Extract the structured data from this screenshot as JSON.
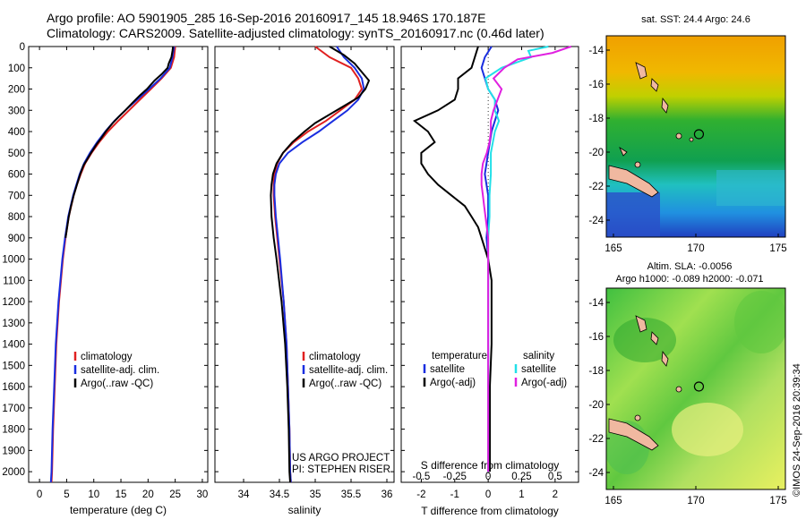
{
  "header": {
    "line1": "Argo profile: AO 5901905_285 16-Sep-2016 20160917_145 18.946S 170.187E",
    "line2": "Climatology: CARS2009. Satellite-adjusted climatology: synTS_20160917.nc (0.46d later)"
  },
  "colors": {
    "climatology": "#e02020",
    "satellite": "#1a2ee0",
    "argo": "#000000",
    "satellite_s": "#22e0e8",
    "argo_s": "#e020e0"
  },
  "chart_data": [
    {
      "type": "line",
      "xlabel": "temperature (deg C)",
      "ylabel": "",
      "xlim": [
        -2,
        31
      ],
      "ylim": [
        2050,
        0
      ],
      "xticks": [
        0,
        5,
        10,
        15,
        20,
        25,
        30
      ],
      "yticks": [
        0,
        100,
        200,
        300,
        400,
        500,
        600,
        700,
        800,
        900,
        1000,
        1100,
        1200,
        1300,
        1400,
        1500,
        1600,
        1700,
        1800,
        1900,
        2000
      ],
      "legend": [
        "climatology",
        "satellite-adj. clim.",
        "Argo(..raw -QC)"
      ],
      "legend_position": "lower-left",
      "series": [
        {
          "key": "clim",
          "depth": [
            0,
            50,
            100,
            150,
            200,
            250,
            300,
            350,
            400,
            450,
            500,
            550,
            600,
            650,
            700,
            800,
            900,
            1000,
            1200,
            1400,
            1600,
            1800,
            2000,
            2050
          ],
          "values": [
            25,
            24.8,
            24.2,
            22.5,
            20.5,
            18.5,
            16.5,
            14.5,
            12.6,
            11,
            9.6,
            8.4,
            7.6,
            6.9,
            6.3,
            5.4,
            4.8,
            4.3,
            3.6,
            3.1,
            2.8,
            2.5,
            2.3,
            2.2
          ]
        },
        {
          "key": "sat",
          "depth": [
            0,
            50,
            100,
            150,
            200,
            250,
            300,
            350,
            400,
            450,
            500,
            550,
            600,
            650,
            700,
            800,
            900,
            1000,
            1200,
            1400,
            1600,
            1800,
            2000,
            2050
          ],
          "values": [
            24.8,
            24.5,
            24,
            22.3,
            20.2,
            18,
            15.8,
            13.8,
            12.1,
            10.6,
            9.3,
            8.2,
            7.4,
            6.8,
            6.2,
            5.3,
            4.7,
            4.2,
            3.5,
            3,
            2.7,
            2.4,
            2.2,
            2.1
          ]
        },
        {
          "key": "argo",
          "depth": [
            0,
            20,
            50,
            80,
            100,
            130,
            160,
            200,
            230,
            260,
            300,
            330,
            360,
            400,
            430,
            460,
            500,
            530,
            560,
            600,
            650,
            700,
            750,
            800,
            900
          ],
          "values": [
            24.6,
            24.5,
            24.3,
            23.8,
            23.6,
            22.5,
            21.2,
            19.8,
            18.5,
            17.3,
            15.8,
            14.6,
            13.5,
            12.2,
            11.4,
            10.5,
            9.5,
            8.8,
            8.1,
            7.5,
            6.9,
            6.3,
            5.8,
            5.4,
            4.8
          ]
        }
      ]
    },
    {
      "type": "line",
      "xlabel": "salinity",
      "ylabel": "",
      "xlim": [
        33.6,
        36.1
      ],
      "ylim": [
        2050,
        0
      ],
      "xticks": [
        34,
        34.5,
        35,
        35.5,
        36
      ],
      "legend": [
        "climatology",
        "satellite-adj. clim.",
        "Argo(..raw -QC)"
      ],
      "legend_position": "lower-right",
      "annotations": [
        "US ARGO PROJECT",
        "PI: STEPHEN RISER"
      ],
      "series": [
        {
          "key": "clim",
          "depth": [
            0,
            50,
            100,
            150,
            200,
            250,
            300,
            350,
            400,
            450,
            500,
            550,
            600,
            650,
            700,
            800,
            900,
            1000,
            1200,
            1400,
            1600,
            1800,
            2000,
            2050
          ],
          "values": [
            35,
            35.2,
            35.5,
            35.6,
            35.65,
            35.55,
            35.35,
            35.15,
            34.9,
            34.7,
            34.55,
            34.47,
            34.43,
            34.42,
            34.42,
            34.44,
            34.47,
            34.5,
            34.56,
            34.6,
            34.62,
            34.64,
            34.65,
            34.66
          ]
        },
        {
          "key": "sat",
          "depth": [
            0,
            50,
            100,
            150,
            200,
            250,
            300,
            350,
            400,
            450,
            500,
            550,
            600,
            650,
            700,
            800,
            900,
            1000,
            1200,
            1400,
            1600,
            1800,
            2000,
            2050
          ],
          "values": [
            35.3,
            35.4,
            35.55,
            35.65,
            35.68,
            35.6,
            35.45,
            35.25,
            35.05,
            34.82,
            34.62,
            34.5,
            34.45,
            34.43,
            34.43,
            34.45,
            34.48,
            34.51,
            34.56,
            34.6,
            34.62,
            34.64,
            34.65,
            34.66
          ]
        },
        {
          "key": "argo",
          "depth": [
            0,
            40,
            80,
            120,
            160,
            200,
            240,
            280,
            320,
            360,
            400,
            450,
            500,
            550,
            600,
            650,
            700,
            800,
            900,
            1000,
            1200,
            1400,
            1600,
            1800,
            2000,
            2050
          ],
          "values": [
            35.2,
            35.4,
            35.55,
            35.65,
            35.75,
            35.7,
            35.6,
            35.4,
            35.2,
            35,
            34.85,
            34.68,
            34.55,
            34.46,
            34.41,
            34.39,
            34.38,
            34.39,
            34.42,
            34.46,
            34.53,
            34.58,
            34.61,
            34.63,
            34.64,
            34.65
          ]
        }
      ]
    },
    {
      "type": "line",
      "xlabel": "T difference from climatology",
      "xlabel_top": "S difference from climatology",
      "xlim": [
        -2.6,
        2.7
      ],
      "ylim": [
        2050,
        0
      ],
      "xticks": [
        -2,
        -1,
        0,
        1,
        2
      ],
      "xticks_s": [
        "-0.5",
        "-0.25",
        "0",
        "0.25",
        "0.5"
      ],
      "legend_t_title": "temperature",
      "legend_s_title": "salinity",
      "legend": [
        "satellite",
        "Argo(-adj)",
        "satellite",
        "Argo(-adj)"
      ],
      "series": [
        {
          "key": "t_sat",
          "depth": [
            0,
            50,
            100,
            150,
            200,
            250,
            300,
            350,
            400,
            500,
            600,
            700,
            800,
            900,
            1000,
            1200,
            1400,
            1600,
            1800,
            2000
          ],
          "values": [
            0.1,
            -0.1,
            -0.2,
            -0.1,
            0,
            0.2,
            0.3,
            0.2,
            0.1,
            0,
            -0.1,
            0,
            0,
            -0.05,
            0,
            0,
            0,
            0,
            0,
            0
          ]
        },
        {
          "key": "t_argo",
          "depth": [
            0,
            50,
            100,
            150,
            200,
            250,
            300,
            350,
            400,
            450,
            500,
            550,
            600,
            650,
            700,
            750,
            800,
            850,
            900,
            950,
            1000,
            1100,
            1200,
            1400,
            1600,
            1800,
            2000
          ],
          "values": [
            -0.3,
            -0.4,
            -0.5,
            -0.9,
            -0.9,
            -1,
            -1.5,
            -2.2,
            -1.8,
            -1.6,
            -2,
            -2,
            -1.8,
            -1.5,
            -1.1,
            -0.7,
            -0.5,
            -0.3,
            -0.2,
            -0.1,
            0,
            0.1,
            0.1,
            0.1,
            0.05,
            0.05,
            0.05
          ]
        },
        {
          "key": "s_sat",
          "depth": [
            0,
            20,
            50,
            100,
            150,
            200,
            250,
            300,
            350,
            400,
            500,
            600,
            700,
            800,
            900,
            1000,
            1200,
            1400,
            1600,
            1800,
            2000
          ],
          "values": [
            0.45,
            0.3,
            0.32,
            0.1,
            -0.02,
            0,
            0.05,
            0.05,
            0.08,
            0.05,
            0.02,
            0.02,
            0.01,
            0.01,
            0,
            0,
            0,
            0,
            0,
            0,
            0
          ]
        },
        {
          "key": "s_argo",
          "depth": [
            0,
            30,
            60,
            100,
            150,
            200,
            250,
            300,
            350,
            400,
            450,
            500,
            550,
            600,
            650,
            700,
            750,
            800,
            850,
            900,
            1000,
            1200,
            1400,
            1600,
            1800,
            2000
          ],
          "values": [
            0.62,
            0.48,
            0.22,
            0.12,
            0.04,
            0.1,
            0.07,
            0.04,
            0.02,
            0.02,
            0.01,
            -0.01,
            -0.04,
            -0.05,
            -0.05,
            -0.04,
            -0.03,
            -0.02,
            -0.01,
            0,
            0,
            0,
            0,
            0,
            0,
            0
          ]
        }
      ]
    }
  ],
  "maps": {
    "sst": {
      "title": "sat. SST: 24.4  Argo: 24.6",
      "lon_ticks": [
        "165",
        "170",
        "175"
      ],
      "lat_ticks": [
        "-14",
        "-16",
        "-18",
        "-20",
        "-22",
        "-24"
      ],
      "float_lon": 170.187,
      "float_lat": -18.946
    },
    "sla": {
      "title1": "Altim. SLA: -0.0056",
      "title2": "Argo h1000: -0.089 h2000: -0.071",
      "lon_ticks": [
        "165",
        "170",
        "175"
      ],
      "lat_ticks": [
        "-14",
        "-16",
        "-18",
        "-20",
        "-22",
        "-24"
      ],
      "float_lon": 170.187,
      "float_lat": -18.946
    }
  },
  "footer": {
    "credit": "©IMOS 24-Sep-2016 20:39:34"
  }
}
